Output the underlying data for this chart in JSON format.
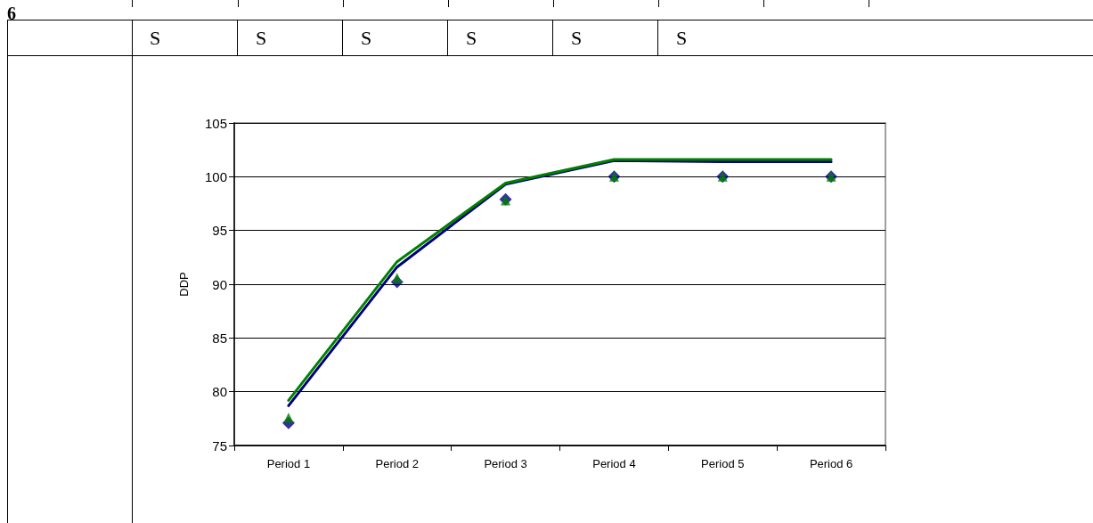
{
  "chart_data": {
    "type": "line",
    "ylabel": "DDP",
    "annotations": [
      "6",
      "S",
      "S",
      "S",
      "S",
      "S",
      "S"
    ],
    "categories": [
      "Period 1",
      "Period 2",
      "Period 3",
      "Period 4",
      "Period 5",
      "Period 6"
    ],
    "series": [
      {
        "type": "line",
        "color": "#000080",
        "marker": "none",
        "values": [
          78.7,
          91.6,
          99.3,
          101.5,
          101.4,
          101.4
        ]
      },
      {
        "type": "line",
        "color": "#008000",
        "marker": "none",
        "values": [
          79.2,
          92.1,
          99.4,
          101.6,
          101.6,
          101.6
        ]
      },
      {
        "type": "scatter",
        "color": "#000080",
        "marker": "diamond",
        "x": [
          "Period 1",
          "Period 2",
          "Period 3",
          "Period 4",
          "Period 5",
          "Period 6"
        ],
        "values": [
          77.1,
          90.2,
          97.9,
          100,
          100,
          100
        ]
      },
      {
        "type": "scatter",
        "color": "#008000",
        "marker": "triangle",
        "x": [
          "Period 1",
          "Period 2",
          "Period 3",
          "Period 4",
          "Period 5",
          "Period 6"
        ],
        "values": [
          77.6,
          90.6,
          97.8,
          100,
          100,
          100
        ]
      }
    ],
    "ylim": [
      75,
      105
    ],
    "yticks": [
      75,
      80,
      85,
      90,
      95,
      100,
      105
    ],
    "grid": "y"
  }
}
